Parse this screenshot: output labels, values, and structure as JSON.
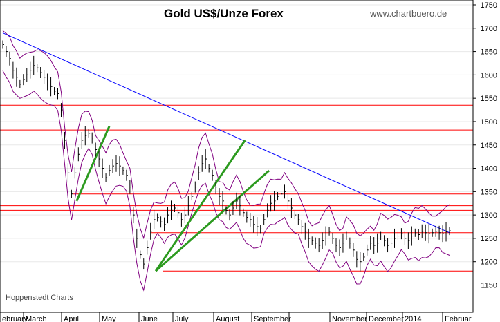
{
  "chart_data": {
    "type": "line",
    "title": "Gold US$/Unze Forex",
    "source": "www.chartbuero.de",
    "credit": "Hoppenstedt Charts",
    "ylim": [
      1100,
      1760
    ],
    "yticks": [
      1150,
      1200,
      1250,
      1300,
      1350,
      1400,
      1450,
      1500,
      1550,
      1600,
      1650,
      1700,
      1750
    ],
    "x_months": [
      "ebruary",
      "March",
      "April",
      "May",
      "June",
      "July",
      "August",
      "September",
      "",
      "November",
      "December",
      "2014",
      "Februar"
    ],
    "price_series": {
      "name": "",
      "x": [
        0,
        2,
        4,
        6,
        8,
        10,
        12,
        14,
        16,
        18,
        20,
        22,
        24,
        26,
        28,
        30,
        32,
        34,
        36,
        38,
        40,
        42,
        44,
        46,
        48,
        50,
        52,
        54,
        56,
        58,
        60,
        62,
        64,
        66,
        68,
        70,
        72,
        74,
        76,
        78,
        80,
        82,
        84,
        86,
        88,
        90,
        92,
        94,
        96,
        98,
        100,
        102,
        104,
        106,
        108,
        110,
        112,
        114,
        116,
        118,
        120,
        122,
        124,
        126,
        128,
        130,
        132,
        134,
        136,
        138,
        140,
        142,
        144,
        146,
        148,
        150,
        152,
        154,
        156,
        158,
        160,
        162,
        164,
        166,
        168,
        170,
        172,
        174,
        176,
        178,
        180,
        182,
        184,
        186,
        188,
        190,
        192,
        194,
        196,
        198,
        200,
        202,
        204,
        206,
        208,
        210,
        212,
        214,
        216,
        218,
        220,
        222,
        224,
        226,
        228,
        230,
        232,
        234,
        236,
        238,
        240,
        242,
        244,
        246,
        248,
        250,
        252,
        254,
        256,
        258,
        260
      ],
      "y": [
        1665,
        1650,
        1635,
        1610,
        1595,
        1580,
        1590,
        1600,
        1610,
        1620,
        1615,
        1605,
        1595,
        1585,
        1575,
        1565,
        1560,
        1525,
        1460,
        1390,
        1345,
        1390,
        1430,
        1460,
        1470,
        1475,
        1465,
        1440,
        1420,
        1400,
        1380,
        1395,
        1405,
        1410,
        1405,
        1395,
        1385,
        1360,
        1300,
        1250,
        1215,
        1195,
        1230,
        1265,
        1290,
        1295,
        1285,
        1280,
        1300,
        1310,
        1315,
        1305,
        1290,
        1300,
        1320,
        1340,
        1360,
        1390,
        1410,
        1420,
        1400,
        1385,
        1360,
        1340,
        1330,
        1310,
        1300,
        1315,
        1330,
        1320,
        1305,
        1295,
        1290,
        1280,
        1275,
        1270,
        1290,
        1310,
        1325,
        1330,
        1340,
        1345,
        1350,
        1330,
        1315,
        1300,
        1290,
        1275,
        1265,
        1250,
        1245,
        1240,
        1235,
        1245,
        1255,
        1265,
        1250,
        1235,
        1230,
        1240,
        1255,
        1240,
        1225,
        1205,
        1200,
        1210,
        1225,
        1240,
        1235,
        1240,
        1255,
        1245,
        1235,
        1240,
        1250,
        1255,
        1260,
        1250,
        1245,
        1255,
        1262,
        1258,
        1265,
        1262,
        1260,
        1262,
        1265,
        1262,
        1260,
        1264,
        1266
      ]
    },
    "horizontal_levels": [
      1535,
      1482,
      1345,
      1320,
      1310,
      1262,
      1180
    ],
    "trend_lines": [
      {
        "color": "#0000ff",
        "from": [
          0,
          1690
        ],
        "to": [
          260,
          1262
        ]
      },
      {
        "color": "#2c9a1f",
        "from": [
          89,
          1180
        ],
        "to": [
          141,
          1460
        ]
      },
      {
        "color": "#2c9a1f",
        "from": [
          89,
          1180
        ],
        "to": [
          155,
          1395
        ]
      },
      {
        "color": "#2c9a1f",
        "from": [
          43,
          1330
        ],
        "to": [
          62,
          1490
        ]
      }
    ],
    "colors": {
      "price": "#000000",
      "bollinger": "#800080",
      "support_resistance": "#ff0000",
      "trend": "#0000ff",
      "channel": "#2c9a1f",
      "grid": "#cccccc"
    },
    "grid": true
  }
}
